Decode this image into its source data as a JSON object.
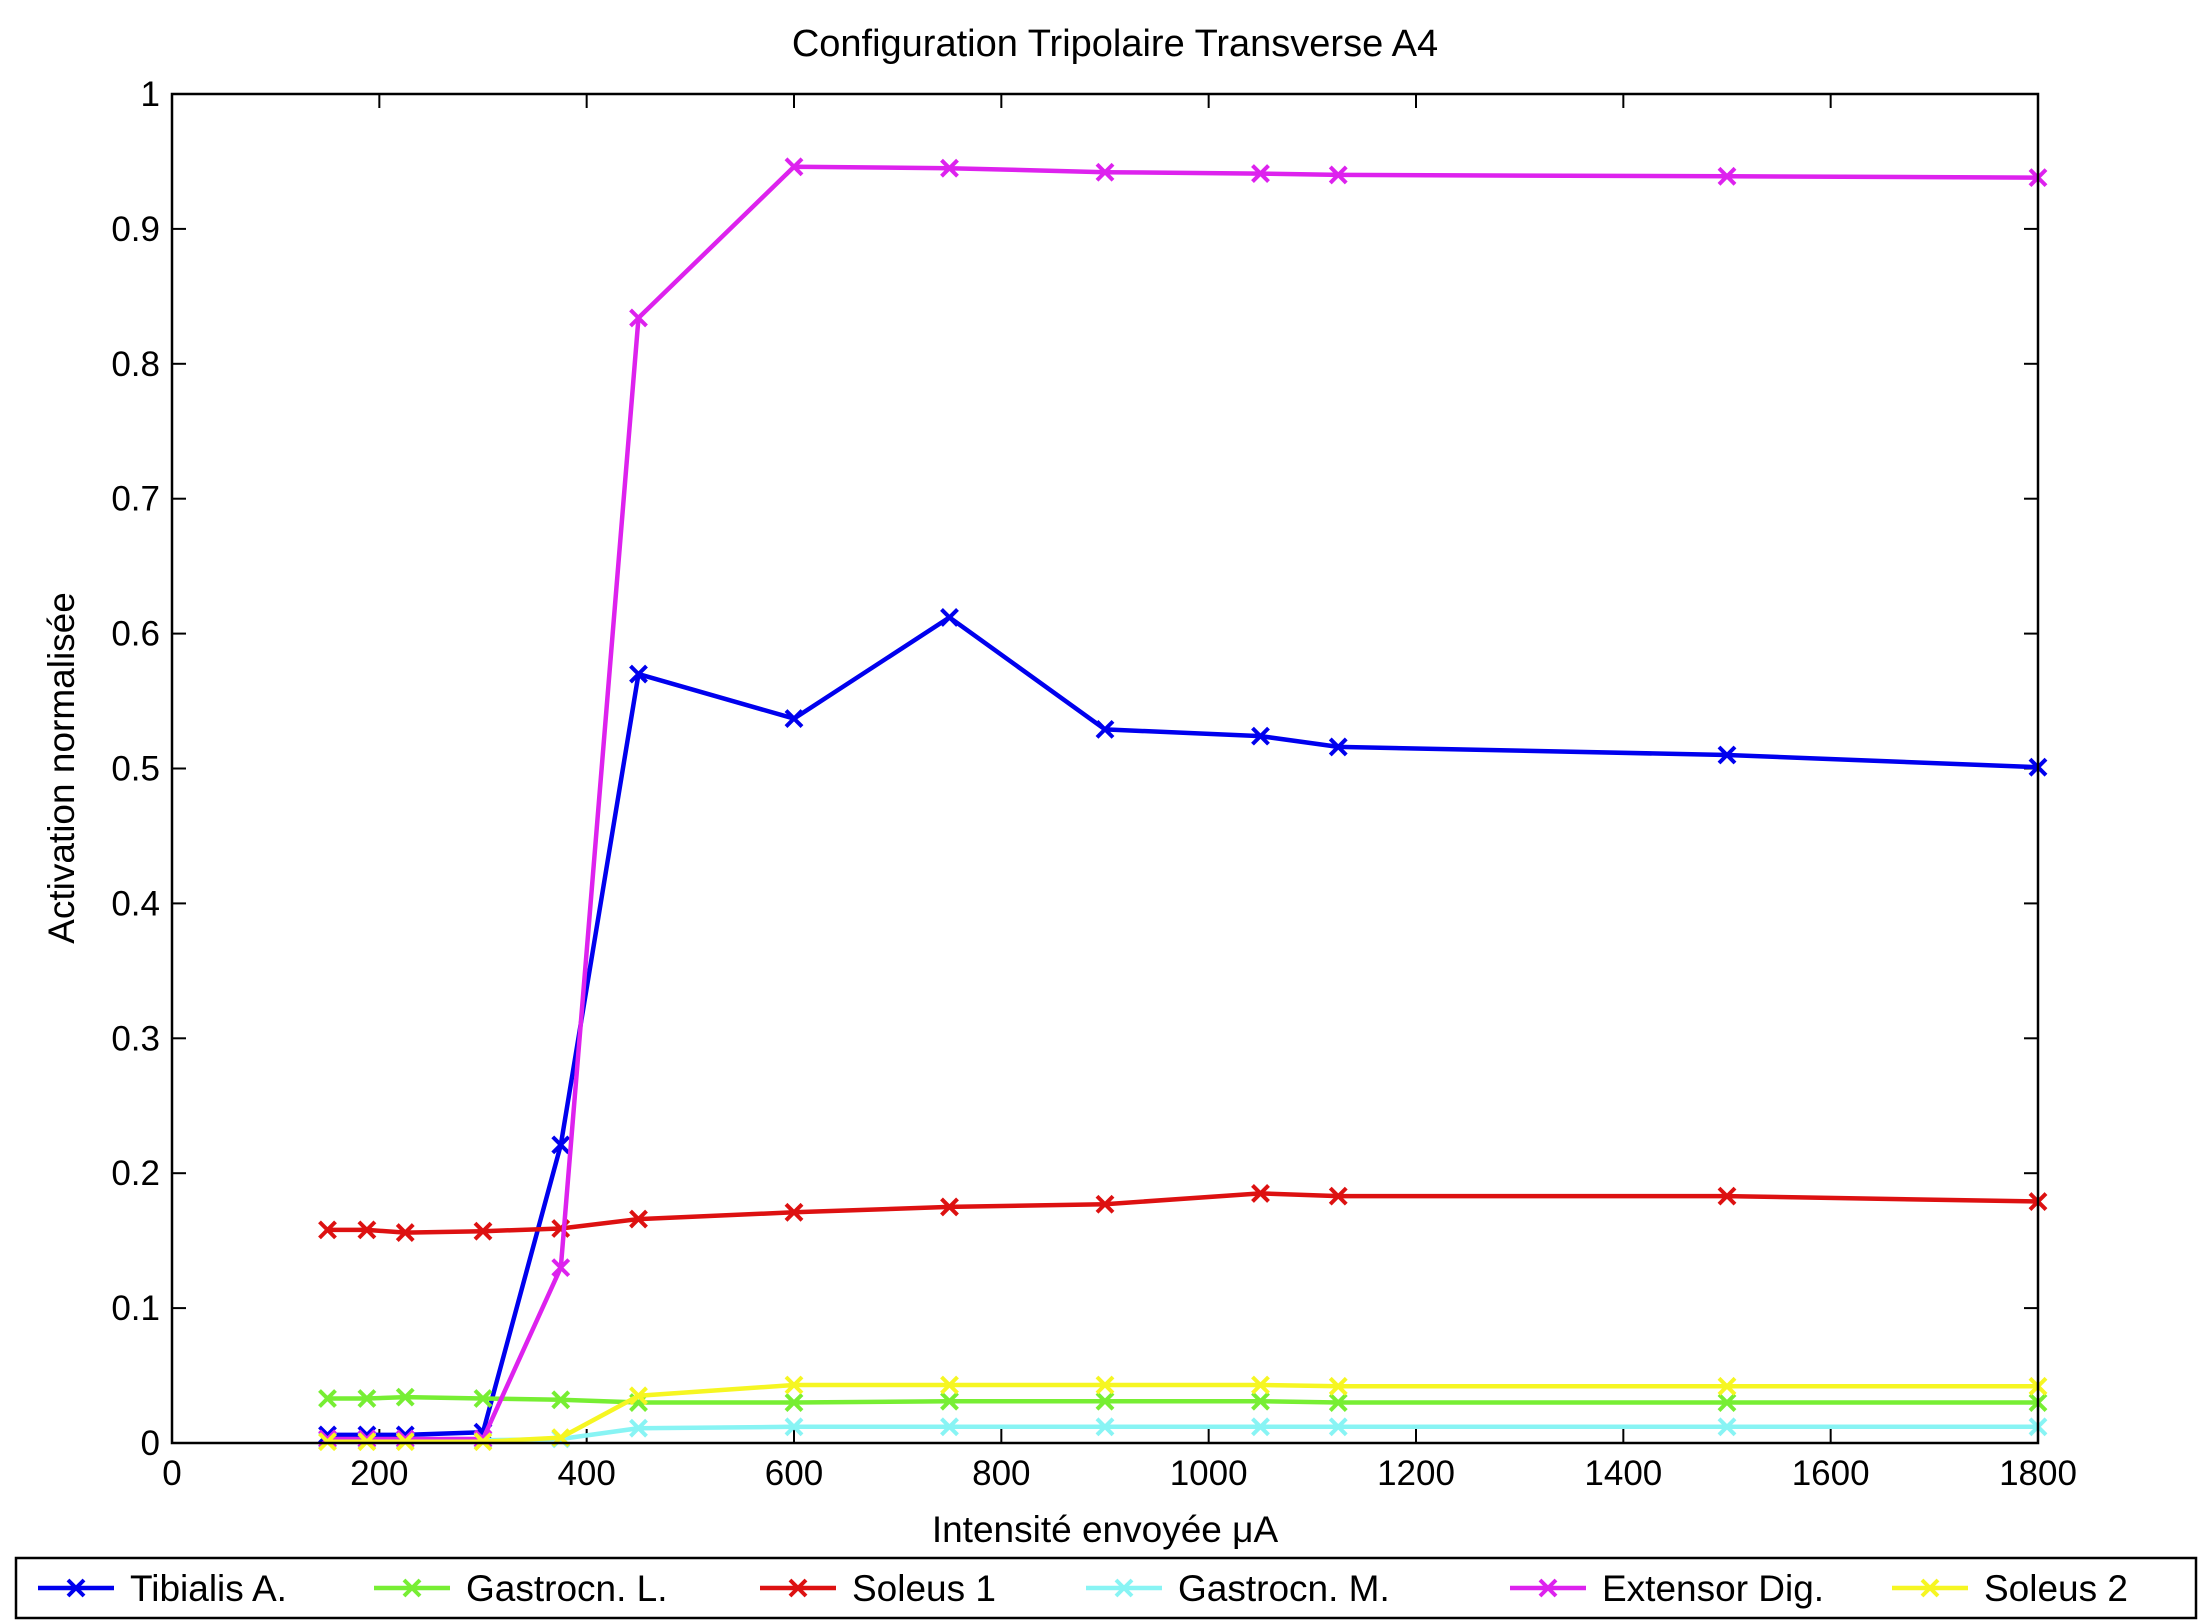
{
  "chart_data": {
    "type": "line",
    "title": "Configuration Tripolaire Transverse A4",
    "xlabel": "Intensité envoyée μA",
    "ylabel": "Activation normalisée",
    "xlim": [
      0,
      1800
    ],
    "ylim": [
      0,
      1
    ],
    "xticks": [
      0,
      200,
      400,
      600,
      800,
      1000,
      1200,
      1400,
      1600,
      1800
    ],
    "yticks": [
      0,
      0.1,
      0.2,
      0.3,
      0.4,
      0.5,
      0.6,
      0.7,
      0.8,
      0.9,
      1
    ],
    "ytick_labels": [
      "0",
      "0.1",
      "0.2",
      "0.3",
      "0.4",
      "0.5",
      "0.6",
      "0.7",
      "0.8",
      "0.9",
      "1"
    ],
    "grid": false,
    "legend_position": "bottom",
    "marker": "x",
    "series": [
      {
        "name": "Tibialis A.",
        "color": "#0000ee",
        "x": [
          150,
          188,
          225,
          300,
          375,
          450,
          600,
          750,
          900,
          1050,
          1125,
          1500,
          1800
        ],
        "y": [
          0.006,
          0.006,
          0.006,
          0.008,
          0.221,
          0.57,
          0.537,
          0.612,
          0.529,
          0.524,
          0.516,
          0.51,
          0.501
        ]
      },
      {
        "name": "Gastrocn. L.",
        "color": "#77ee33",
        "x": [
          150,
          188,
          225,
          300,
          375,
          450,
          600,
          750,
          900,
          1050,
          1125,
          1500,
          1800
        ],
        "y": [
          0.033,
          0.033,
          0.034,
          0.033,
          0.032,
          0.03,
          0.03,
          0.031,
          0.031,
          0.031,
          0.03,
          0.03,
          0.03
        ]
      },
      {
        "name": "Soleus 1",
        "color": "#dd1111",
        "x": [
          150,
          188,
          225,
          300,
          375,
          450,
          600,
          750,
          900,
          1050,
          1125,
          1500,
          1800
        ],
        "y": [
          0.158,
          0.158,
          0.156,
          0.157,
          0.159,
          0.166,
          0.171,
          0.175,
          0.177,
          0.185,
          0.183,
          0.183,
          0.179
        ]
      },
      {
        "name": "Gastrocn. M.",
        "color": "#88f4f4",
        "x": [
          150,
          188,
          225,
          300,
          375,
          450,
          600,
          750,
          900,
          1050,
          1125,
          1500,
          1800
        ],
        "y": [
          0.002,
          0.002,
          0.002,
          0.002,
          0.003,
          0.011,
          0.012,
          0.012,
          0.012,
          0.012,
          0.012,
          0.012,
          0.012
        ]
      },
      {
        "name": "Extensor Dig.",
        "color": "#dd22ee",
        "x": [
          150,
          188,
          225,
          300,
          375,
          450,
          600,
          750,
          900,
          1050,
          1125,
          1500,
          1800
        ],
        "y": [
          0.003,
          0.003,
          0.003,
          0.003,
          0.13,
          0.834,
          0.946,
          0.945,
          0.942,
          0.941,
          0.94,
          0.939,
          0.938
        ]
      },
      {
        "name": "Soleus 2",
        "color": "#f6f622",
        "x": [
          150,
          188,
          225,
          300,
          375,
          450,
          600,
          750,
          900,
          1050,
          1125,
          1500,
          1800
        ],
        "y": [
          0.001,
          0.001,
          0.001,
          0.001,
          0.004,
          0.035,
          0.043,
          0.043,
          0.043,
          0.043,
          0.042,
          0.042,
          0.042
        ]
      }
    ]
  }
}
